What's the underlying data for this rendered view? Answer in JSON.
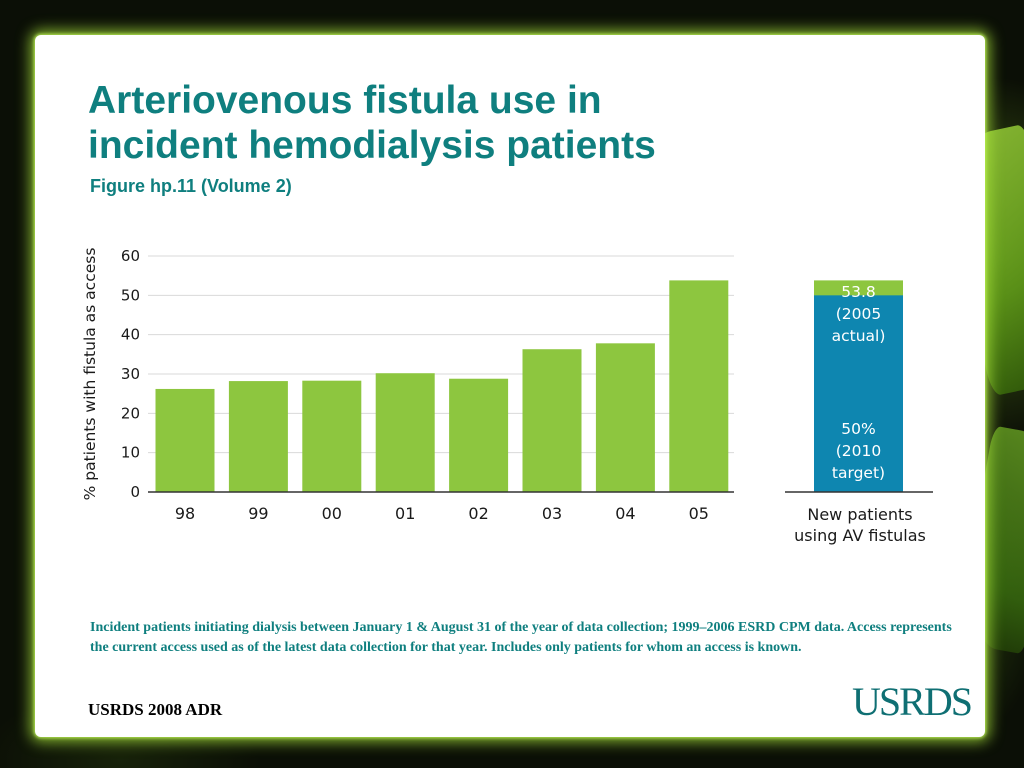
{
  "slide": {
    "title_line1": "Arteriovenous fistula use in",
    "title_line2": "incident hemodialysis patients",
    "subtitle": "Figure hp.11 (Volume 2)",
    "footnote": "Incident patients initiating dialysis between January 1 & August 31 of the year of data collection; 1999–2006 ESRD CPM data. Access represents the current access used as of the latest data collection for that year. Includes only patients for whom an access is known.",
    "footer": "USRDS 2008 ADR",
    "logo": "USRDS"
  },
  "colors": {
    "title": "#0f7f7f",
    "bar_green": "#8dc63f",
    "target_blue": "#0e86b0",
    "grid": "#d9d9d9",
    "axis": "#333333"
  },
  "chart_data": [
    {
      "type": "bar",
      "categories": [
        "98",
        "99",
        "00",
        "01",
        "02",
        "03",
        "04",
        "05"
      ],
      "values": [
        26.2,
        28.2,
        28.3,
        30.2,
        28.8,
        36.3,
        37.8,
        53.8
      ],
      "ylabel": "% patients with fistula as access",
      "ylim": [
        0,
        60
      ],
      "yticks": [
        0,
        10,
        20,
        30,
        40,
        50,
        60
      ],
      "grid": true
    },
    {
      "type": "bar",
      "categories": [
        "New patients using AV fistulas"
      ],
      "category_lines": [
        "New patients",
        "using AV fistulas"
      ],
      "ylim": [
        0,
        60
      ],
      "series": [
        {
          "values": [
            50
          ],
          "color": "#0e86b0",
          "label_lines": [
            "50%",
            "(2010",
            "target)"
          ]
        },
        {
          "values": [
            53.8
          ],
          "color": "#8dc63f",
          "label_lines": [
            "53.8",
            "(2005",
            "actual)"
          ]
        }
      ]
    }
  ]
}
